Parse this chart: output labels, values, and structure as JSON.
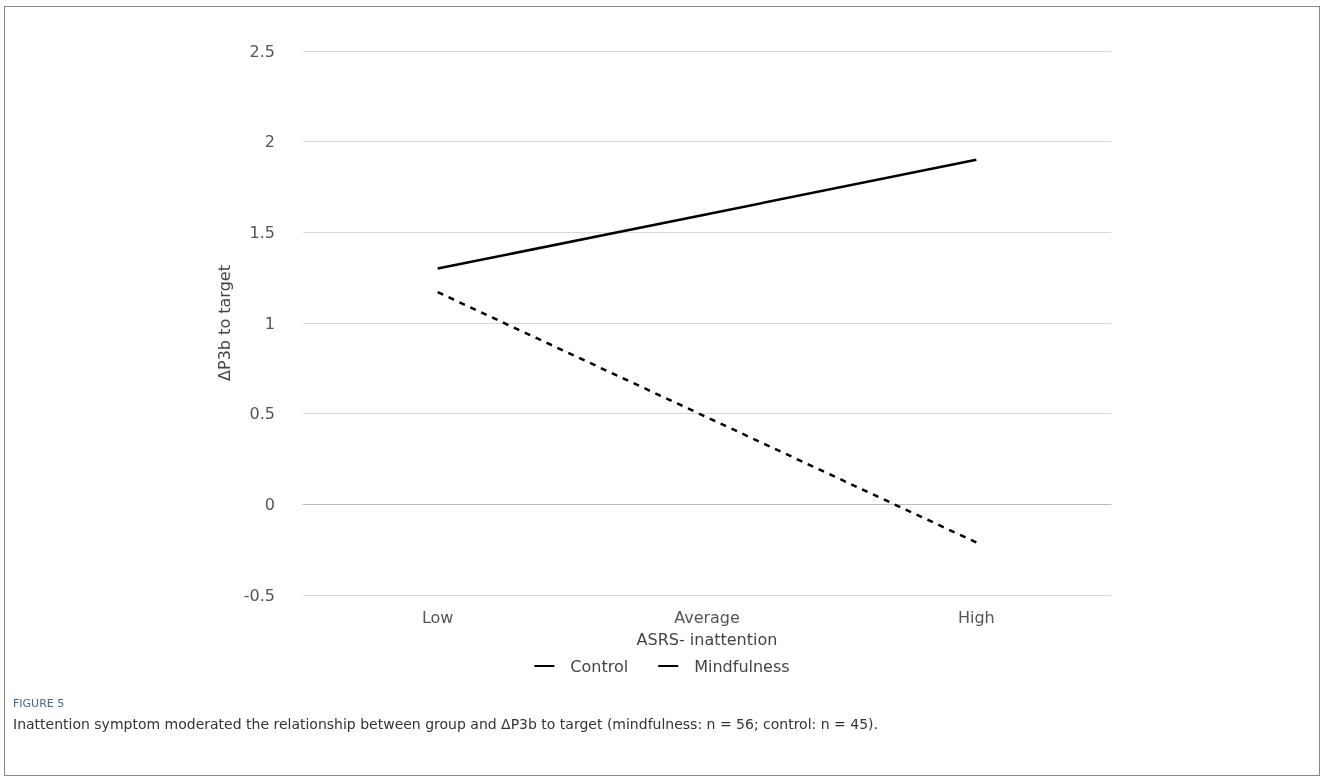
{
  "chart_data": {
    "type": "line",
    "xlabel": "ASRS- inattention",
    "ylabel": "ΔP3b to target",
    "categories": [
      "Low",
      "Average",
      "High"
    ],
    "series": [
      {
        "name": "Control",
        "color": "#000000",
        "values": [
          1.17,
          0.48,
          -0.21
        ],
        "line_style": "dashed"
      },
      {
        "name": "Mindfulness",
        "color": "#000000",
        "values": [
          1.3,
          1.6,
          1.9
        ],
        "line_style": "solid"
      }
    ],
    "ylim": [
      -0.5,
      2.5
    ],
    "yticks": [
      -0.5,
      0,
      0.5,
      1,
      1.5,
      2,
      2.5
    ],
    "grid": "y",
    "legend": "bottom",
    "marker": "none",
    "annotations": [
      "FIGURE 5",
      "Inattention symptom moderated the relationship between group and ΔP3b to target (mindfulness: n = 56; control: n = 45)."
    ]
  }
}
